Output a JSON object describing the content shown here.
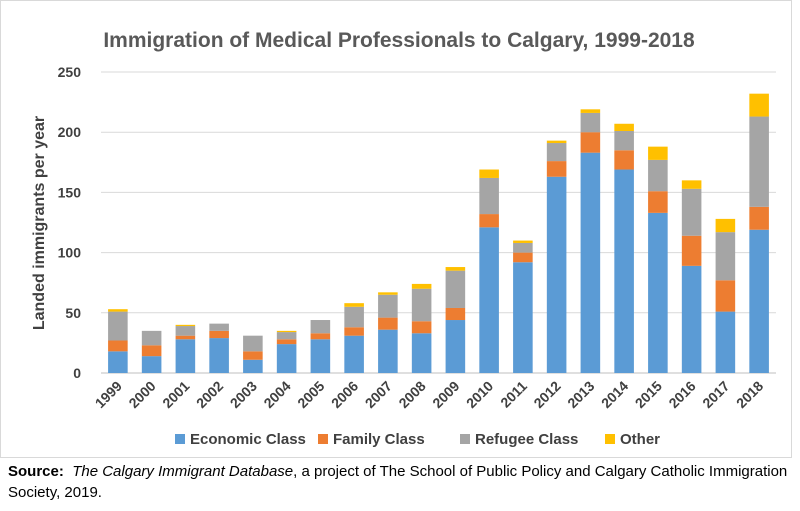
{
  "chart_data": {
    "type": "bar",
    "stacked": true,
    "title": "Immigration of Medical Professionals to Calgary, 1999-2018",
    "xlabel": "",
    "ylabel": "Landed immigrants per year",
    "ylim": [
      0,
      250
    ],
    "yticks": [
      "0",
      "50",
      "100",
      "150",
      "200",
      "250"
    ],
    "grid": true,
    "legend_position": "bottom",
    "categories": [
      "1999",
      "2000",
      "2001",
      "2002",
      "2003",
      "2004",
      "2005",
      "2006",
      "2007",
      "2008",
      "2009",
      "2010",
      "2011",
      "2012",
      "2013",
      "2014",
      "2015",
      "2016",
      "2017",
      "2018"
    ],
    "series": [
      {
        "name": "Economic Class",
        "color": "#5b9bd5",
        "values": [
          18,
          14,
          28,
          29,
          11,
          24,
          28,
          31,
          36,
          33,
          44,
          121,
          92,
          163,
          183,
          169,
          133,
          89,
          51,
          119
        ]
      },
      {
        "name": "Family Class",
        "color": "#ed7d31",
        "values": [
          9,
          9,
          3,
          6,
          7,
          4,
          5,
          7,
          10,
          10,
          10,
          11,
          8,
          13,
          17,
          16,
          18,
          25,
          26,
          19
        ]
      },
      {
        "name": "Refugee Class",
        "color": "#a5a5a5",
        "values": [
          24,
          12,
          8,
          6,
          13,
          6,
          11,
          17,
          19,
          27,
          31,
          30,
          8,
          15,
          16,
          16,
          26,
          39,
          40,
          75
        ]
      },
      {
        "name": "Other",
        "color": "#ffc000",
        "values": [
          2,
          0,
          1,
          0,
          0,
          1,
          0,
          3,
          2,
          4,
          3,
          7,
          2,
          2,
          3,
          6,
          11,
          7,
          11,
          19
        ]
      }
    ]
  },
  "source": {
    "label": "Source:",
    "title": "The Calgary Immigrant Database",
    "rest": ", a project of The School of Public Policy and Calgary Catholic Immigration Society, 2019."
  }
}
